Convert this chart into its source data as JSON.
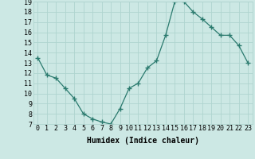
{
  "x": [
    0,
    1,
    2,
    3,
    4,
    5,
    6,
    7,
    8,
    9,
    10,
    11,
    12,
    13,
    14,
    15,
    16,
    17,
    18,
    19,
    20,
    21,
    22,
    23
  ],
  "y": [
    13.5,
    11.8,
    11.5,
    10.5,
    9.5,
    8.0,
    7.5,
    7.2,
    7.0,
    8.5,
    10.5,
    11.0,
    12.5,
    13.2,
    15.7,
    19.0,
    19.0,
    18.0,
    17.3,
    16.5,
    15.7,
    15.7,
    14.7,
    13.0
  ],
  "line_color": "#2a7a6e",
  "marker": "+",
  "marker_size": 4,
  "bg_color": "#cce8e4",
  "grid_color": "#afd4cf",
  "xlabel": "Humidex (Indice chaleur)",
  "ylim": [
    7,
    19
  ],
  "xlim_min": -0.5,
  "xlim_max": 23.5,
  "yticks": [
    7,
    8,
    9,
    10,
    11,
    12,
    13,
    14,
    15,
    16,
    17,
    18,
    19
  ],
  "xticks": [
    0,
    1,
    2,
    3,
    4,
    5,
    6,
    7,
    8,
    9,
    10,
    11,
    12,
    13,
    14,
    15,
    16,
    17,
    18,
    19,
    20,
    21,
    22,
    23
  ],
  "xtick_labels": [
    "0",
    "1",
    "2",
    "3",
    "4",
    "5",
    "6",
    "7",
    "8",
    "9",
    "10",
    "11",
    "12",
    "13",
    "14",
    "15",
    "16",
    "17",
    "18",
    "19",
    "20",
    "21",
    "22",
    "23"
  ],
  "label_fontsize": 7,
  "tick_fontsize": 6
}
